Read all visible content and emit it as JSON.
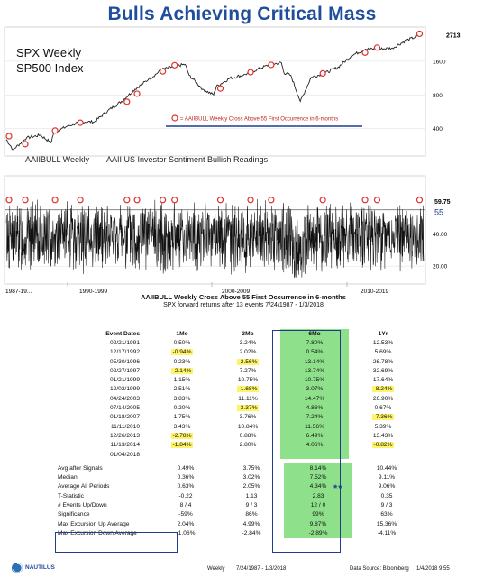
{
  "title": "Bulls Achieving Critical Mass",
  "spx_panel": {
    "label_line1": "SPX Weekly",
    "label_line2": "SP500 Index",
    "legend": "= AAIIBULL Weekly Cross Above 55 First Occurrence in 6-months",
    "price_last": "2713",
    "ticks": [
      "1600",
      "800",
      "400"
    ]
  },
  "aaii_panel": {
    "label": "AAIIBULL Weekly",
    "subtitle": "AAII US Investor Sentiment Bullish Readings",
    "last_value": "59.75",
    "threshold_label": "55",
    "ticks": [
      "40.00",
      "20.00"
    ],
    "x_labels": [
      "1987-19...",
      "1990-1999",
      "2000-2009",
      "2010-2019"
    ]
  },
  "table": {
    "title": "AAIIBULL Weekly Cross Above 55 First Occurrence in 6-months",
    "subtitle": "SPX forward returns after 13 events 7/24/1987 - 1/3/2018",
    "headers": [
      "Event Dates",
      "1Mo",
      "3Mo",
      "6Mo",
      "1Yr"
    ],
    "rows": [
      [
        "02/21/1991",
        "0.50%",
        "3.24%",
        "7.80%",
        "12.53%"
      ],
      [
        "12/17/1992",
        "-0.94%",
        "2.02%",
        "0.54%",
        "5.69%"
      ],
      [
        "05/30/1996",
        "0.23%",
        "-2.56%",
        "13.14%",
        "26.78%"
      ],
      [
        "02/27/1997",
        "-2.14%",
        "7.27%",
        "13.74%",
        "32.69%"
      ],
      [
        "01/21/1999",
        "1.15%",
        "10.75%",
        "10.75%",
        "17.64%"
      ],
      [
        "12/02/1999",
        "2.51%",
        "-1.68%",
        "3.07%",
        "-8.24%"
      ],
      [
        "04/24/2003",
        "3.83%",
        "11.11%",
        "14.47%",
        "26.90%"
      ],
      [
        "07/14/2005",
        "0.20%",
        "-3.37%",
        "4.86%",
        "0.67%"
      ],
      [
        "01/18/2007",
        "1.75%",
        "3.76%",
        "7.24%",
        "-7.36%"
      ],
      [
        "11/11/2010",
        "3.43%",
        "10.84%",
        "11.56%",
        "5.39%"
      ],
      [
        "12/26/2013",
        "-2.78%",
        "0.88%",
        "6.49%",
        "13.43%"
      ],
      [
        "11/13/2014",
        "-1.84%",
        "2.80%",
        "4.06%",
        "-0.82%"
      ],
      [
        "01/04/2018",
        "",
        "",
        "",
        ""
      ]
    ],
    "highlights": [
      [
        1,
        1
      ],
      [
        2,
        2
      ],
      [
        3,
        1
      ],
      [
        5,
        2
      ],
      [
        5,
        4
      ],
      [
        7,
        2
      ],
      [
        8,
        4
      ],
      [
        10,
        1
      ],
      [
        11,
        1
      ],
      [
        11,
        4
      ]
    ],
    "stats": [
      [
        "Avg after Signals",
        "0.49%",
        "3.75%",
        "8.14%",
        "10.44%"
      ],
      [
        "Median",
        "0.36%",
        "3.02%",
        "7.52%",
        "9.11%"
      ],
      [
        "Average All Periods",
        "0.63%",
        "2.05%",
        "4.34%",
        "9.06%"
      ],
      [
        "T-Statistic",
        "-0.22",
        "1.13",
        "2.83",
        "0.35"
      ],
      [
        "# Events Up/Down",
        "8 / 4",
        "9 / 3",
        "12 / 0",
        "9 / 3"
      ],
      [
        "Significance",
        "-59%",
        "86%",
        "99%",
        "63%"
      ],
      [
        "Max Excursion Up Average",
        "2.04%",
        "4.99%",
        "9.87%",
        "15.36%"
      ],
      [
        "Max Excursion Down Average",
        "-1.06%",
        "-2.84%",
        "-2.89%",
        "-4.11%"
      ]
    ],
    "stars": "**"
  },
  "footer": {
    "logo_text": "NAUTILUS",
    "left": "Weekly",
    "range": "7/24/1987 - 1/3/2018",
    "source": "Data Source: Bloomberg",
    "date": "1/4/2018 9:55"
  },
  "colors": {
    "title": "#1f4e9c",
    "marker": "#e0302c",
    "green": "#8ee08a",
    "highlight": "#fff36a",
    "blue_border": "#1f3c8f"
  },
  "chart_data": [
    {
      "type": "line",
      "title": "SPX Weekly",
      "ylabel": "SP500 Index",
      "yscale": "log",
      "ylim": [
        250,
        3000
      ],
      "x": [
        1987.5,
        1988,
        1989,
        1990,
        1990.8,
        1991,
        1992,
        1993,
        1994,
        1995,
        1996,
        1997,
        1998,
        1999,
        2000,
        2000.7,
        2001,
        2002,
        2002.8,
        2003,
        2004,
        2005,
        2006,
        2007,
        2007.8,
        2008,
        2008.5,
        2009.2,
        2010,
        2011,
        2012,
        2013,
        2014,
        2015,
        2016,
        2017,
        2018
      ],
      "y": [
        320,
        260,
        330,
        350,
        300,
        370,
        420,
        460,
        460,
        580,
        700,
        900,
        1100,
        1350,
        1450,
        1500,
        1200,
        900,
        800,
        950,
        1130,
        1200,
        1350,
        1500,
        1550,
        1250,
        1200,
        700,
        1150,
        1250,
        1420,
        1800,
        2050,
        2050,
        2100,
        2450,
        2713
      ],
      "markers": {
        "name": "AAIIBULL Weekly Cross Above 55 First Occurrence in 6-months",
        "x": [
          1987.7,
          1988.9,
          1991.1,
          1992.96,
          1996.4,
          1997.15,
          1999.05,
          1999.92,
          2003.3,
          2005.53,
          2007.05,
          2010.86,
          2013.98,
          2014.87,
          2018.0
        ],
        "y": [
          330,
          280,
          370,
          435,
          670,
          790,
          1250,
          1420,
          880,
          1230,
          1430,
          1200,
          1840,
          2040,
          2713
        ]
      },
      "ticks": [
        400,
        800,
        1600
      ]
    },
    {
      "type": "line",
      "title": "AAIIBULL Weekly",
      "ylabel": "AAII US Investor Sentiment Bullish Readings",
      "ylim": [
        10,
        75
      ],
      "threshold": 55,
      "last": 59.75,
      "x_labels": [
        "1987-19...",
        "1990-1999",
        "2000-2009",
        "2010-2019"
      ],
      "markers_x": [
        1987.7,
        1988.9,
        1991.1,
        1992.96,
        1996.4,
        1997.15,
        1999.05,
        1999.92,
        2003.3,
        2005.53,
        2007.05,
        2010.86,
        2013.98,
        2014.87,
        2018.0
      ]
    }
  ]
}
